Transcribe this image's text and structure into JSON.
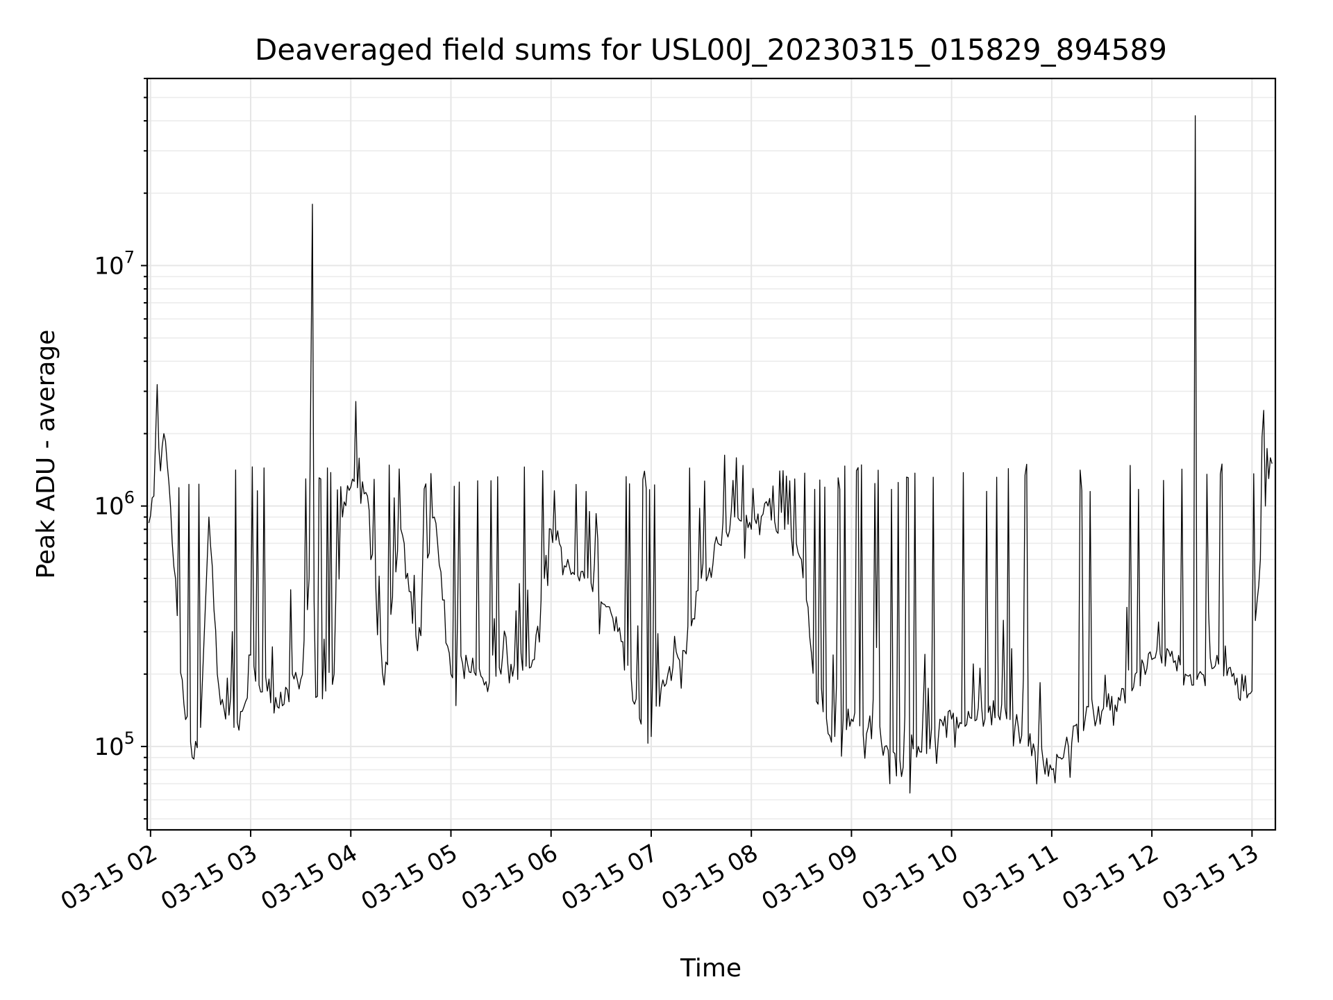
{
  "chart_data": {
    "type": "line",
    "title": "Deaveraged field sums for USL00J_20230315_015829_894589",
    "xlabel": "Time",
    "ylabel": "Peak ADU - average",
    "yscale": "log",
    "grid": true,
    "xlim": [
      "2023-03-15 01:58",
      "2023-03-15 13:14"
    ],
    "ylim": [
      45000,
      60000000
    ],
    "x_ticks": [
      {
        "value": "2023-03-15 02:00",
        "label": "03-15 02"
      },
      {
        "value": "2023-03-15 03:00",
        "label": "03-15 03"
      },
      {
        "value": "2023-03-15 04:00",
        "label": "03-15 04"
      },
      {
        "value": "2023-03-15 05:00",
        "label": "03-15 05"
      },
      {
        "value": "2023-03-15 06:00",
        "label": "03-15 06"
      },
      {
        "value": "2023-03-15 07:00",
        "label": "03-15 07"
      },
      {
        "value": "2023-03-15 08:00",
        "label": "03-15 08"
      },
      {
        "value": "2023-03-15 09:00",
        "label": "03-15 09"
      },
      {
        "value": "2023-03-15 10:00",
        "label": "03-15 10"
      },
      {
        "value": "2023-03-15 11:00",
        "label": "03-15 11"
      },
      {
        "value": "2023-03-15 12:00",
        "label": "03-15 12"
      },
      {
        "value": "2023-03-15 13:00",
        "label": "03-15 13"
      }
    ],
    "y_ticks": [
      {
        "value": 100000,
        "base": "10",
        "exp": "5"
      },
      {
        "value": 1000000,
        "base": "10",
        "exp": "6"
      },
      {
        "value": 10000000,
        "base": "10",
        "exp": "7"
      }
    ],
    "series": [
      {
        "color": "#000000",
        "x": [
          "2023-03-15 01:59",
          "2023-03-15 02:02",
          "2023-03-15 02:04",
          "2023-03-15 02:06",
          "2023-03-15 02:08",
          "2023-03-15 02:10",
          "2023-03-15 02:13",
          "2023-03-15 02:16",
          "2023-03-15 02:20",
          "2023-03-15 02:25",
          "2023-03-15 02:30",
          "2023-03-15 02:35",
          "2023-03-15 02:40",
          "2023-03-15 02:45",
          "2023-03-15 02:50",
          "2023-03-15 02:55",
          "2023-03-15 03:00",
          "2023-03-15 03:05",
          "2023-03-15 03:10",
          "2023-03-15 03:15",
          "2023-03-15 03:20",
          "2023-03-15 03:25",
          "2023-03-15 03:30",
          "2023-03-15 03:35",
          "2023-03-15 03:37",
          "2023-03-15 03:38",
          "2023-03-15 03:39",
          "2023-03-15 03:45",
          "2023-03-15 03:50",
          "2023-03-15 03:55",
          "2023-03-15 04:00",
          "2023-03-15 04:10",
          "2023-03-15 04:20",
          "2023-03-15 04:30",
          "2023-03-15 04:40",
          "2023-03-15 04:50",
          "2023-03-15 05:00",
          "2023-03-15 05:10",
          "2023-03-15 05:20",
          "2023-03-15 05:30",
          "2023-03-15 05:40",
          "2023-03-15 05:50",
          "2023-03-15 06:00",
          "2023-03-15 06:10",
          "2023-03-15 06:20",
          "2023-03-15 06:30",
          "2023-03-15 06:40",
          "2023-03-15 06:50",
          "2023-03-15 07:00",
          "2023-03-15 07:10",
          "2023-03-15 07:20",
          "2023-03-15 07:30",
          "2023-03-15 07:40",
          "2023-03-15 07:50",
          "2023-03-15 08:00",
          "2023-03-15 08:10",
          "2023-03-15 08:20",
          "2023-03-15 08:30",
          "2023-03-15 08:40",
          "2023-03-15 08:50",
          "2023-03-15 09:00",
          "2023-03-15 09:10",
          "2023-03-15 09:20",
          "2023-03-15 09:30",
          "2023-03-15 09:40",
          "2023-03-15 09:50",
          "2023-03-15 10:00",
          "2023-03-15 10:10",
          "2023-03-15 10:20",
          "2023-03-15 10:30",
          "2023-03-15 10:40",
          "2023-03-15 10:50",
          "2023-03-15 11:00",
          "2023-03-15 11:05",
          "2023-03-15 11:10",
          "2023-03-15 11:20",
          "2023-03-15 11:30",
          "2023-03-15 11:40",
          "2023-03-15 11:50",
          "2023-03-15 11:55",
          "2023-03-15 12:00",
          "2023-03-15 12:10",
          "2023-03-15 12:20",
          "2023-03-15 12:25",
          "2023-03-15 12:26",
          "2023-03-15 12:27",
          "2023-03-15 12:30",
          "2023-03-15 12:40",
          "2023-03-15 12:50",
          "2023-03-15 13:00",
          "2023-03-15 13:03",
          "2023-03-15 13:05",
          "2023-03-15 13:07",
          "2023-03-15 13:08",
          "2023-03-15 13:10",
          "2023-03-15 13:12"
        ],
        "y": [
          850000,
          1100000,
          3200000,
          1400000,
          2000000,
          1500000,
          700000,
          350000,
          150000,
          90000,
          120000,
          900000,
          200000,
          130000,
          120000,
          140000,
          240000,
          180000,
          170000,
          160000,
          150000,
          200000,
          190000,
          500000,
          18000000,
          400000,
          160000,
          170000,
          200000,
          900000,
          1200000,
          1100000,
          180000,
          800000,
          250000,
          900000,
          200000,
          220000,
          180000,
          200000,
          190000,
          230000,
          800000,
          600000,
          500000,
          400000,
          300000,
          150000,
          110000,
          200000,
          250000,
          500000,
          700000,
          900000,
          800000,
          1000000,
          800000,
          600000,
          150000,
          110000,
          130000,
          120000,
          100000,
          75000,
          100000,
          110000,
          130000,
          140000,
          130000,
          150000,
          120000,
          95000,
          80000,
          90000,
          100000,
          130000,
          140000,
          160000,
          200000,
          220000,
          230000,
          250000,
          200000,
          180000,
          42000000,
          190000,
          200000,
          220000,
          180000,
          170000,
          400000,
          600000,
          2500000,
          1000000,
          1300000,
          1500000
        ]
      }
    ]
  }
}
